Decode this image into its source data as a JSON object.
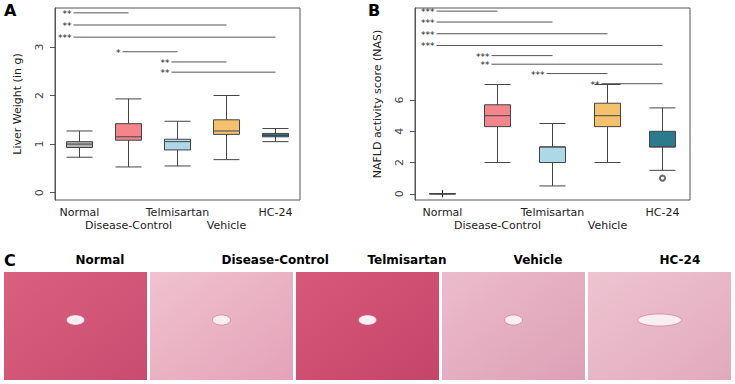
{
  "chart_data": [
    {
      "type": "boxplot",
      "title": "A",
      "y_label": "Liver Weight (in g)",
      "categories": [
        "Normal",
        "Disease-Control",
        "Telmisartan",
        "Vehicle",
        "HC-24"
      ],
      "colors": [
        "#b3b3b3",
        "#f4868b",
        "#add8e6",
        "#f5c16c",
        "#2a7b8e"
      ],
      "boxes": [
        {
          "min": 0.73,
          "q1": 0.93,
          "median": 1.0,
          "q3": 1.05,
          "max": 1.27
        },
        {
          "min": 0.53,
          "q1": 1.08,
          "median": 1.15,
          "q3": 1.42,
          "max": 1.93
        },
        {
          "min": 0.55,
          "q1": 0.88,
          "median": 1.05,
          "q3": 1.1,
          "max": 1.47
        },
        {
          "min": 0.68,
          "q1": 1.2,
          "median": 1.27,
          "q3": 1.5,
          "max": 2.0
        },
        {
          "min": 1.05,
          "q1": 1.15,
          "median": 1.18,
          "q3": 1.22,
          "max": 1.32
        }
      ],
      "means": [
        1.0,
        1.2,
        1.02,
        1.35,
        1.18
      ],
      "outliers": [],
      "annotations": [
        {
          "from": "Normal",
          "to": "Disease-Control",
          "y": 3.7,
          "label": "**"
        },
        {
          "from": "Normal",
          "to": "Vehicle",
          "y": 3.45,
          "label": "**"
        },
        {
          "from": "Normal",
          "to": "HC-24",
          "y": 3.2,
          "label": "***"
        },
        {
          "from": "Disease-Control",
          "to": "Telmisartan",
          "y": 2.9,
          "label": "*"
        },
        {
          "from": "Telmisartan",
          "to": "Vehicle",
          "y": 2.69,
          "label": "**"
        },
        {
          "from": "Telmisartan",
          "to": "HC-24",
          "y": 2.48,
          "label": "**"
        }
      ],
      "ylim": [
        -0.15,
        3.8
      ],
      "yticks": [
        0,
        1,
        2,
        3
      ],
      "grid": false
    },
    {
      "type": "boxplot",
      "title": "B",
      "y_label": "NAFLD activity score (NAS)",
      "categories": [
        "Normal",
        "Disease-Control",
        "Telmisartan",
        "Vehicle",
        "HC-24"
      ],
      "colors": [
        "#b3b3b3",
        "#f4868b",
        "#add8e6",
        "#f5c16c",
        "#2a7b8e"
      ],
      "boxes": [
        {
          "min": 0,
          "q1": 0,
          "median": 0,
          "q3": 0,
          "max": 0
        },
        {
          "min": 2.0,
          "q1": 4.3,
          "median": 5.0,
          "q3": 5.7,
          "max": 7.0
        },
        {
          "min": 0.5,
          "q1": 2.0,
          "median": 3.0,
          "q3": 3.0,
          "max": 4.5
        },
        {
          "min": 2.0,
          "q1": 4.3,
          "median": 5.0,
          "q3": 5.8,
          "max": 7.0
        },
        {
          "min": 1.5,
          "q1": 3.0,
          "median": 3.0,
          "q3": 4.0,
          "max": 5.5
        }
      ],
      "means": [
        0,
        5.05,
        2.6,
        5.0,
        3.2
      ],
      "outliers": [
        {
          "category": "HC-24",
          "value": 1.0
        }
      ],
      "annotations": [
        {
          "from": "Normal",
          "to": "Disease-Control",
          "y": 11.7,
          "label": "***"
        },
        {
          "from": "Normal",
          "to": "Telmisartan",
          "y": 11.0,
          "label": "***"
        },
        {
          "from": "Normal",
          "to": "Vehicle",
          "y": 10.25,
          "label": "***"
        },
        {
          "from": "Normal",
          "to": "HC-24",
          "y": 9.5,
          "label": "***"
        },
        {
          "from": "Disease-Control",
          "to": "Telmisartan",
          "y": 8.85,
          "label": "***"
        },
        {
          "from": "Disease-Control",
          "to": "HC-24",
          "y": 8.3,
          "label": "**"
        },
        {
          "from": "Telmisartan",
          "to": "Vehicle",
          "y": 7.7,
          "label": "***"
        },
        {
          "from": "Vehicle",
          "to": "HC-24",
          "y": 7.05,
          "label": "**"
        }
      ],
      "ylim": [
        -0.4,
        11.9
      ],
      "yticks": [
        0,
        2,
        4,
        6
      ],
      "grid": false
    }
  ],
  "image_panel": {
    "title": "C",
    "images": [
      "Normal",
      "Disease-Control",
      "Telmisartan",
      "Vehicle",
      "HC-24"
    ]
  }
}
